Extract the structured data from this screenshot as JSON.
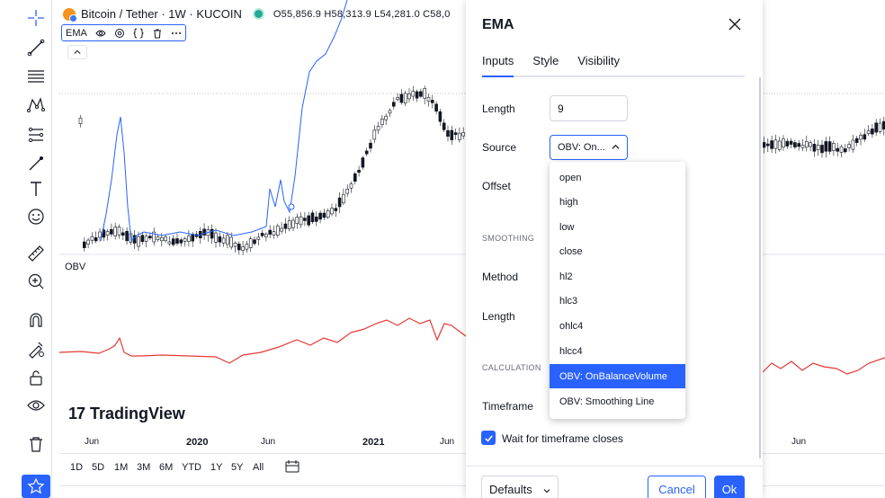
{
  "chart": {
    "symbol": "Bitcoin / Tether · 1W · KUCOIN",
    "ohlc": "O55,856.9 H58,313.9 L54,281.0 C58,0",
    "indicator_pill": {
      "label": "EMA",
      "eye_icon": "eye-icon",
      "settings_icon": "gear-icon",
      "source_icon": "braces-icon",
      "delete_icon": "trash-icon",
      "more_icon": "more-icon"
    },
    "collapse_label": "^",
    "obv_label": "OBV",
    "brand": "TradingView",
    "brand_mark": "17",
    "time_labels": [
      "Jun",
      "2020",
      "Jun",
      "2021",
      "Jun",
      "Jun"
    ],
    "obv_line_color": "#e53935",
    "ema_line_color": "#2962ff"
  },
  "ranges": [
    "1D",
    "5D",
    "1M",
    "3M",
    "6M",
    "YTD",
    "1Y",
    "5Y",
    "All"
  ],
  "dialog": {
    "title": "EMA",
    "tabs": [
      "Inputs",
      "Style",
      "Visibility"
    ],
    "active_tab": "Inputs",
    "length_label": "Length",
    "length_value": "9",
    "source_label": "Source",
    "source_value": "OBV: On...",
    "offset_label": "Offset",
    "smoothing_section": "SMOOTHING",
    "method_label": "Method",
    "smoothing_length_label": "Length",
    "calculation_section": "CALCULATION",
    "timeframe_label": "Timeframe",
    "wait_checkbox_label": "Wait for timeframe closes",
    "wait_checked": true,
    "defaults_label": "Defaults",
    "cancel_label": "Cancel",
    "ok_label": "Ok"
  },
  "dropdown": {
    "options": [
      "open",
      "high",
      "low",
      "close",
      "hl2",
      "hlc3",
      "ohlc4",
      "hlcc4",
      "OBV: OnBalanceVolume",
      "OBV: Smoothing Line"
    ],
    "selected": "OBV: OnBalanceVolume"
  },
  "colors": {
    "accent": "#2962ff",
    "text": "#131722",
    "border": "#e0e3eb"
  }
}
